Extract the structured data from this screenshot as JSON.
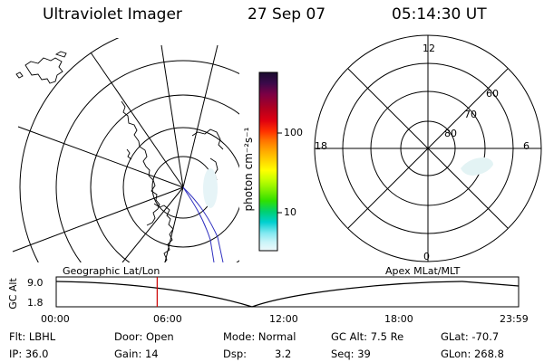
{
  "header": {
    "instrument": "Ultraviolet Imager",
    "date": "27 Sep 07",
    "time": "05:14:30 UT"
  },
  "colorbar": {
    "unit_label": "photon cm⁻²s⁻¹",
    "ticks": [
      "100",
      "10"
    ],
    "colors": [
      "#1a0b2e",
      "#3a0a4a",
      "#7a0045",
      "#b00020",
      "#e00010",
      "#ff3000",
      "#ff7000",
      "#ffa000",
      "#ffd000",
      "#ffff00",
      "#c8ff00",
      "#80f000",
      "#30e000",
      "#00d070",
      "#00d0d0",
      "#80e8f0",
      "#c8f4f8",
      "#eef9fb"
    ]
  },
  "polar_plot": {
    "mlt_labels": {
      "top": "12",
      "left": "18",
      "right": "6",
      "bottom": "0"
    },
    "lat_labels": [
      "60",
      "70",
      "80"
    ]
  },
  "timeline": {
    "y_axis_label": "GC Alt",
    "y_ticks": [
      "9.0",
      "1.8"
    ],
    "left_caption": "Geographic Lat/Lon",
    "right_caption": "Apex MLat/MLT",
    "x_ticks": [
      "00:00",
      "06:00",
      "12:00",
      "18:00",
      "23:59"
    ],
    "marker_hour": 5.24,
    "marker_color": "#cc0000"
  },
  "info": {
    "flt": "Flt: LBHL",
    "door": "Door: Open",
    "mode": "Mode: Normal",
    "gc_alt": "GC Alt: 7.5 Re",
    "glat": "GLat: -70.7",
    "ip": "IP: 36.0",
    "gain": "Gain: 14",
    "dsp_label": "Dsp:",
    "dsp_value": "3.2",
    "seq": "Seq: 39",
    "glon": "GLon: 268.8"
  }
}
